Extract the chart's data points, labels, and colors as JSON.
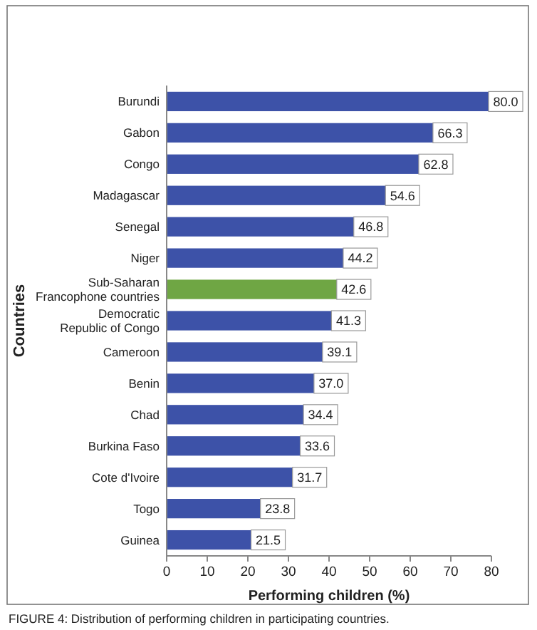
{
  "chart_data": {
    "type": "bar",
    "orientation": "horizontal",
    "xlabel": "Performing children (%)",
    "ylabel": "Countries",
    "categories": [
      "Burundi",
      "Gabon",
      "Congo",
      "Madagascar",
      "Senegal",
      "Niger",
      "Sub-Saharan Francophone countries",
      "Democratic Republic of Congo",
      "Cameroon",
      "Benin",
      "Chad",
      "Burkina Faso",
      "Cote d'Ivoire",
      "Togo",
      "Guinea"
    ],
    "values": [
      80.0,
      66.3,
      62.8,
      54.6,
      46.8,
      44.2,
      42.6,
      41.3,
      39.1,
      37.0,
      34.4,
      33.6,
      31.7,
      23.8,
      21.5
    ],
    "value_labels": [
      "80.0",
      "66.3",
      "62.8",
      "54.6",
      "46.8",
      "44.2",
      "42.6",
      "41.3",
      "39.1",
      "37.0",
      "34.4",
      "33.6",
      "31.7",
      "23.8",
      "21.5"
    ],
    "colors": [
      "#3d52a8",
      "#3d52a8",
      "#3d52a8",
      "#3d52a8",
      "#3d52a8",
      "#3d52a8",
      "#6fa644",
      "#3d52a8",
      "#3d52a8",
      "#3d52a8",
      "#3d52a8",
      "#3d52a8",
      "#3d52a8",
      "#3d52a8",
      "#3d52a8"
    ],
    "xlim": [
      0,
      80
    ],
    "xticks": [
      0,
      10,
      20,
      30,
      40,
      50,
      60,
      70,
      80
    ],
    "grid": false,
    "annotations": [
      "FIGURE 4: Distribution of performing children in participating countries."
    ]
  }
}
